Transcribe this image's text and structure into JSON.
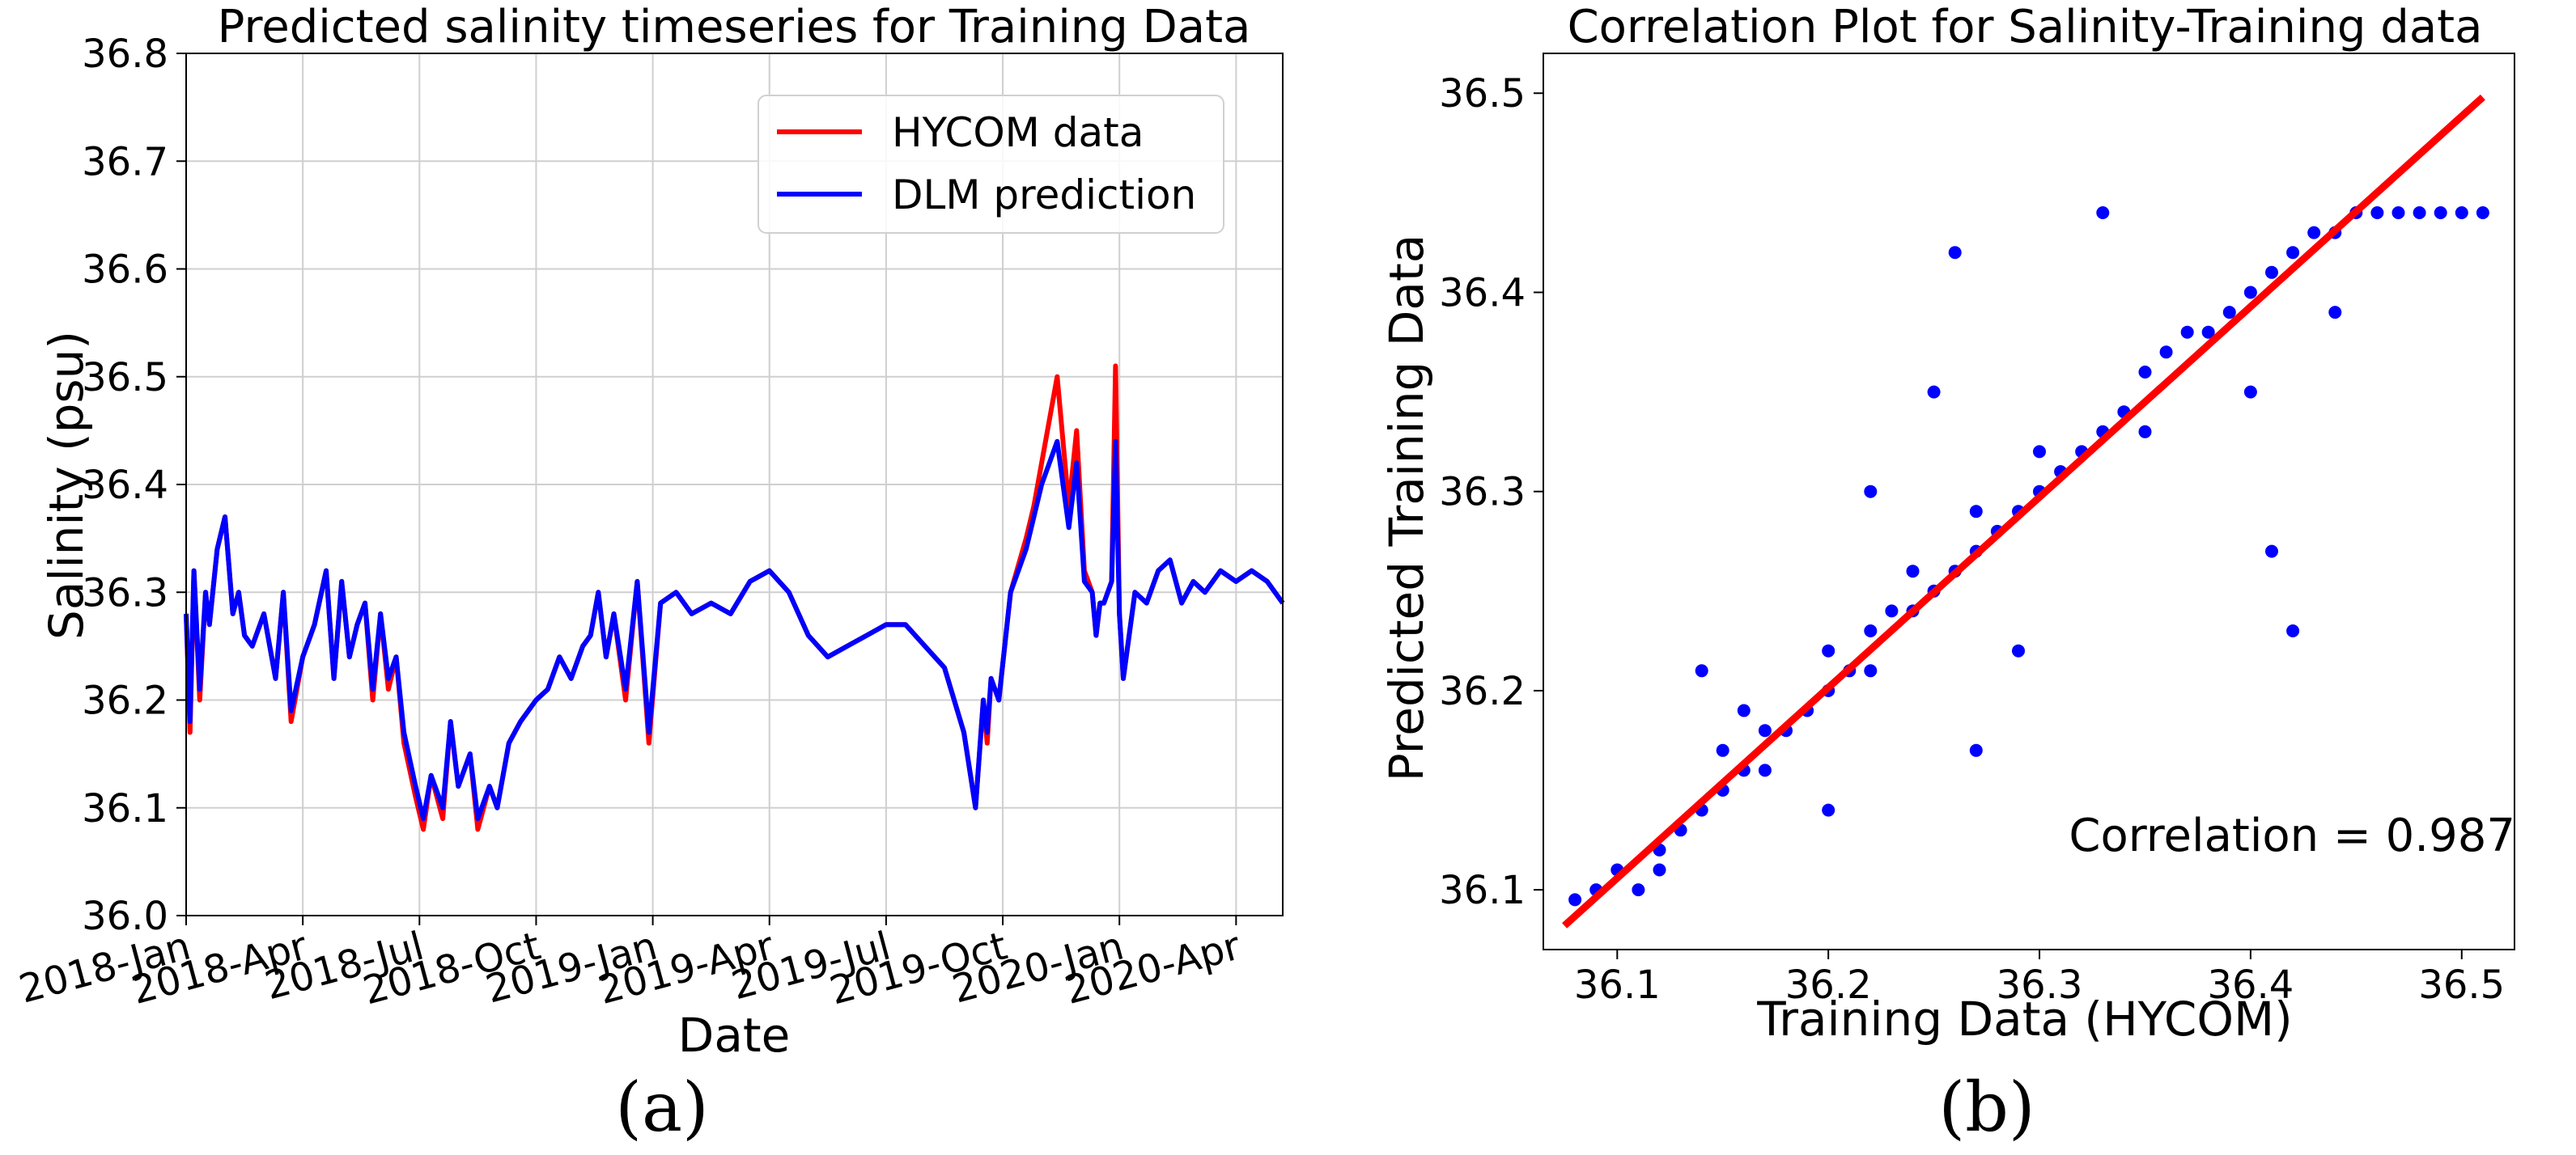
{
  "chart_data": [
    {
      "type": "line",
      "title": "Predicted salinity timeseries for Training Data",
      "xlabel": "Date",
      "ylabel": "Salinity (psu)",
      "ylim": [
        36.0,
        36.8
      ],
      "yticks": [
        "36.0",
        "36.1",
        "36.2",
        "36.3",
        "36.4",
        "36.5",
        "36.6",
        "36.7",
        "36.8"
      ],
      "xtick_labels": [
        "2018-Jan",
        "2018-Apr",
        "2018-Jul",
        "2018-Oct",
        "2019-Jan",
        "2019-Apr",
        "2019-Jul",
        "2019-Oct",
        "2020-Jan",
        "2020-Apr"
      ],
      "x_range_months": [
        0,
        28.2
      ],
      "grid": true,
      "legend_location": "top-right",
      "series": [
        {
          "name": "HYCOM data",
          "color": "#ff0000",
          "x": [
            0,
            0.1,
            0.2,
            0.35,
            0.5,
            0.6,
            0.8,
            1.0,
            1.2,
            1.35,
            1.5,
            1.7,
            2.0,
            2.3,
            2.5,
            2.7,
            3.0,
            3.3,
            3.6,
            3.8,
            4.0,
            4.2,
            4.4,
            4.6,
            4.8,
            5.0,
            5.2,
            5.4,
            5.6,
            5.9,
            6.1,
            6.3,
            6.6,
            6.8,
            7.0,
            7.3,
            7.5,
            7.8,
            8.0,
            8.3,
            8.6,
            9.0,
            9.3,
            9.6,
            9.9,
            10.2,
            10.4,
            10.6,
            10.8,
            11.0,
            11.3,
            11.6,
            11.9,
            12.2,
            12.6,
            13.0,
            13.5,
            14.0,
            14.5,
            15.0,
            15.5,
            16.0,
            16.5,
            17.0,
            17.5,
            18.0,
            18.5,
            19.0,
            19.5,
            20.0,
            20.3,
            20.5,
            20.6,
            20.7,
            20.9,
            21.2,
            21.6,
            21.8,
            22.0,
            22.4,
            22.7,
            22.9,
            23.1,
            23.3,
            23.4,
            23.5,
            23.6,
            23.8,
            23.9,
            24.0,
            24.1,
            24.4,
            24.7,
            25.0,
            25.3,
            25.6,
            25.9,
            26.2,
            26.6,
            27.0,
            27.4,
            27.8,
            28.2
          ],
          "values": [
            36.28,
            36.17,
            36.32,
            36.2,
            36.3,
            36.27,
            36.34,
            36.37,
            36.28,
            36.3,
            36.26,
            36.25,
            36.28,
            36.22,
            36.3,
            36.18,
            36.24,
            36.27,
            36.32,
            36.22,
            36.31,
            36.24,
            36.27,
            36.29,
            36.2,
            36.28,
            36.21,
            36.24,
            36.16,
            36.11,
            36.08,
            36.13,
            36.09,
            36.18,
            36.12,
            36.15,
            36.08,
            36.12,
            36.1,
            36.16,
            36.18,
            36.2,
            36.21,
            36.24,
            36.22,
            36.25,
            36.26,
            36.3,
            36.24,
            36.28,
            36.2,
            36.31,
            36.16,
            36.29,
            36.3,
            36.28,
            36.29,
            36.28,
            36.31,
            36.32,
            36.3,
            36.26,
            36.24,
            36.25,
            36.26,
            36.27,
            36.27,
            36.25,
            36.23,
            36.17,
            36.1,
            36.2,
            36.16,
            36.22,
            36.2,
            36.3,
            36.35,
            36.38,
            36.42,
            36.5,
            36.38,
            36.45,
            36.32,
            36.3,
            36.26,
            36.29,
            36.29,
            36.31,
            36.51,
            36.28,
            36.22,
            36.3,
            36.29,
            36.32,
            36.33,
            36.29,
            36.31,
            36.3,
            36.32,
            36.31,
            36.32,
            36.31,
            36.29
          ]
        },
        {
          "name": "DLM prediction",
          "color": "#0000ff",
          "x": [
            0,
            0.1,
            0.2,
            0.35,
            0.5,
            0.6,
            0.8,
            1.0,
            1.2,
            1.35,
            1.5,
            1.7,
            2.0,
            2.3,
            2.5,
            2.7,
            3.0,
            3.3,
            3.6,
            3.8,
            4.0,
            4.2,
            4.4,
            4.6,
            4.8,
            5.0,
            5.2,
            5.4,
            5.6,
            5.9,
            6.1,
            6.3,
            6.6,
            6.8,
            7.0,
            7.3,
            7.5,
            7.8,
            8.0,
            8.3,
            8.6,
            9.0,
            9.3,
            9.6,
            9.9,
            10.2,
            10.4,
            10.6,
            10.8,
            11.0,
            11.3,
            11.6,
            11.9,
            12.2,
            12.6,
            13.0,
            13.5,
            14.0,
            14.5,
            15.0,
            15.5,
            16.0,
            16.5,
            17.0,
            17.5,
            18.0,
            18.5,
            19.0,
            19.5,
            20.0,
            20.3,
            20.5,
            20.6,
            20.7,
            20.9,
            21.2,
            21.6,
            21.8,
            22.0,
            22.4,
            22.7,
            22.9,
            23.1,
            23.3,
            23.4,
            23.5,
            23.6,
            23.8,
            23.9,
            24.0,
            24.1,
            24.4,
            24.7,
            25.0,
            25.3,
            25.6,
            25.9,
            26.2,
            26.6,
            27.0,
            27.4,
            27.8,
            28.2
          ],
          "values": [
            36.28,
            36.18,
            36.32,
            36.21,
            36.3,
            36.27,
            36.34,
            36.37,
            36.28,
            36.3,
            36.26,
            36.25,
            36.28,
            36.22,
            36.3,
            36.19,
            36.24,
            36.27,
            36.32,
            36.22,
            36.31,
            36.24,
            36.27,
            36.29,
            36.21,
            36.28,
            36.22,
            36.24,
            36.17,
            36.12,
            36.09,
            36.13,
            36.1,
            36.18,
            36.12,
            36.15,
            36.09,
            36.12,
            36.1,
            36.16,
            36.18,
            36.2,
            36.21,
            36.24,
            36.22,
            36.25,
            36.26,
            36.3,
            36.24,
            36.28,
            36.21,
            36.31,
            36.17,
            36.29,
            36.3,
            36.28,
            36.29,
            36.28,
            36.31,
            36.32,
            36.3,
            36.26,
            36.24,
            36.25,
            36.26,
            36.27,
            36.27,
            36.25,
            36.23,
            36.17,
            36.1,
            36.2,
            36.17,
            36.22,
            36.2,
            36.3,
            36.34,
            36.37,
            36.4,
            36.44,
            36.36,
            36.42,
            36.31,
            36.3,
            36.26,
            36.29,
            36.29,
            36.31,
            36.44,
            36.28,
            36.22,
            36.3,
            36.29,
            36.32,
            36.33,
            36.29,
            36.31,
            36.3,
            36.32,
            36.31,
            36.32,
            36.31,
            36.29
          ]
        }
      ]
    },
    {
      "type": "scatter",
      "title": "Correlation Plot for Salinity-Training data",
      "xlabel": "Training Data (HYCOM)",
      "ylabel": "Predicted Training Data",
      "xlim": [
        36.065,
        36.525
      ],
      "ylim": [
        36.07,
        36.52
      ],
      "xticks": [
        "36.1",
        "36.2",
        "36.3",
        "36.4",
        "36.5"
      ],
      "yticks": [
        "36.1",
        "36.2",
        "36.3",
        "36.4",
        "36.5"
      ],
      "grid": false,
      "annotation": "Correlation = 0.987",
      "correlation": 0.987,
      "fit_line": {
        "color": "#ff0000",
        "x": [
          36.075,
          36.51
        ],
        "y": [
          36.082,
          36.498
        ]
      },
      "series": [
        {
          "name": "points",
          "color": "#0000ff",
          "x": [
            36.08,
            36.09,
            36.1,
            36.11,
            36.12,
            36.13,
            36.14,
            36.15,
            36.15,
            36.16,
            36.17,
            36.17,
            36.18,
            36.19,
            36.2,
            36.2,
            36.21,
            36.22,
            36.22,
            36.23,
            36.24,
            36.24,
            36.25,
            36.26,
            36.27,
            36.27,
            36.28,
            36.29,
            36.3,
            36.3,
            36.31,
            36.32,
            36.33,
            36.34,
            36.35,
            36.36,
            36.37,
            36.38,
            36.39,
            36.4,
            36.41,
            36.42,
            36.43,
            36.44,
            36.45,
            36.46,
            36.47,
            36.48,
            36.49,
            36.5,
            36.51,
            36.14,
            36.12,
            36.2,
            36.27,
            36.29,
            36.26,
            36.41,
            36.42,
            36.33,
            36.16,
            36.22,
            36.25,
            36.4,
            36.44,
            36.35
          ],
          "y": [
            36.095,
            36.1,
            36.11,
            36.1,
            36.12,
            36.13,
            36.14,
            36.15,
            36.17,
            36.16,
            36.18,
            36.16,
            36.18,
            36.19,
            36.2,
            36.22,
            36.21,
            36.23,
            36.21,
            36.24,
            36.24,
            36.26,
            36.25,
            36.26,
            36.27,
            36.29,
            36.28,
            36.29,
            36.3,
            36.32,
            36.31,
            36.32,
            36.33,
            36.34,
            36.36,
            36.37,
            36.38,
            36.38,
            36.39,
            36.4,
            36.41,
            36.42,
            36.43,
            36.43,
            36.44,
            36.44,
            36.44,
            36.44,
            36.44,
            36.44,
            36.44,
            36.21,
            36.11,
            36.14,
            36.17,
            36.22,
            36.42,
            36.27,
            36.23,
            36.44,
            36.19,
            36.3,
            36.35,
            36.35,
            36.39,
            36.33
          ]
        }
      ]
    }
  ],
  "captions": [
    "(a)",
    "(b)"
  ]
}
